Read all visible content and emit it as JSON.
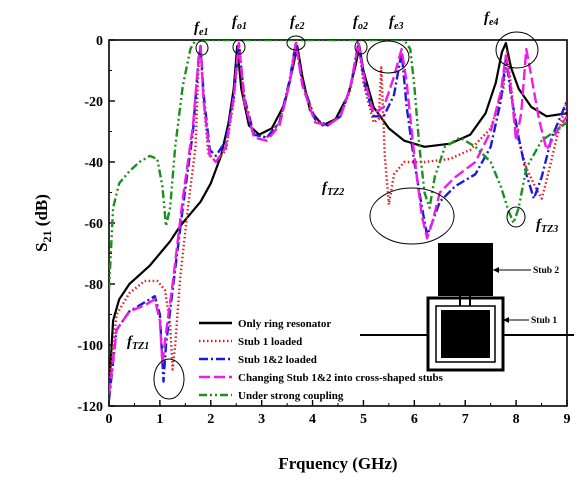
{
  "chart_data": {
    "type": "line",
    "xlabel": "Frquency (GHz)",
    "ylabel_main": "S",
    "ylabel_sub": "21",
    "ylabel_unit": " (dB)",
    "xlim": [
      0,
      9
    ],
    "ylim": [
      -120,
      0
    ],
    "x_ticks": [
      "0",
      "1",
      "2",
      "3",
      "4",
      "5",
      "6",
      "7",
      "8",
      "9"
    ],
    "y_ticks": [
      "0",
      "-20",
      "-40",
      "-60",
      "-80",
      "-100",
      "-120"
    ],
    "grid": false,
    "legend_position": "bottom-left",
    "series": [
      {
        "name": "Only ring resonator",
        "color": "#000000",
        "dash": "solid",
        "points": [
          [
            0,
            -115
          ],
          [
            0.08,
            -92
          ],
          [
            0.2,
            -85
          ],
          [
            0.4,
            -80
          ],
          [
            0.6,
            -77
          ],
          [
            0.8,
            -74
          ],
          [
            1.0,
            -70
          ],
          [
            1.2,
            -66
          ],
          [
            1.4,
            -61
          ],
          [
            1.6,
            -57
          ],
          [
            1.8,
            -53
          ],
          [
            2.0,
            -47
          ],
          [
            2.2,
            -38
          ],
          [
            2.35,
            -27
          ],
          [
            2.45,
            -16
          ],
          [
            2.52,
            -2
          ],
          [
            2.6,
            -16
          ],
          [
            2.75,
            -28
          ],
          [
            2.95,
            -31
          ],
          [
            3.2,
            -29
          ],
          [
            3.45,
            -21
          ],
          [
            3.6,
            -10
          ],
          [
            3.7,
            -2
          ],
          [
            3.8,
            -12
          ],
          [
            3.95,
            -23
          ],
          [
            4.2,
            -28
          ],
          [
            4.45,
            -26
          ],
          [
            4.7,
            -18
          ],
          [
            4.85,
            -8
          ],
          [
            4.92,
            -2
          ],
          [
            5.0,
            -10
          ],
          [
            5.2,
            -22
          ],
          [
            5.5,
            -29
          ],
          [
            5.8,
            -33
          ],
          [
            6.2,
            -35
          ],
          [
            6.7,
            -34
          ],
          [
            7.1,
            -31
          ],
          [
            7.4,
            -24
          ],
          [
            7.6,
            -14
          ],
          [
            7.72,
            -4
          ],
          [
            7.8,
            -1
          ],
          [
            7.9,
            -9
          ],
          [
            8.05,
            -16
          ],
          [
            8.3,
            -22
          ],
          [
            8.6,
            -25
          ],
          [
            9.0,
            -24
          ]
        ]
      },
      {
        "name": "Stub 1 loaded",
        "color": "#e8161f",
        "dash": "dotted",
        "points": [
          [
            0,
            -112
          ],
          [
            0.15,
            -90
          ],
          [
            0.4,
            -83
          ],
          [
            0.7,
            -79
          ],
          [
            0.95,
            -79
          ],
          [
            1.1,
            -82
          ],
          [
            1.2,
            -93
          ],
          [
            1.25,
            -108
          ],
          [
            1.3,
            -100
          ],
          [
            1.4,
            -78
          ],
          [
            1.55,
            -55
          ],
          [
            1.7,
            -35
          ],
          [
            1.76,
            -8
          ],
          [
            1.8,
            -2
          ],
          [
            1.85,
            -18
          ],
          [
            1.95,
            -37
          ],
          [
            2.1,
            -40
          ],
          [
            2.3,
            -36
          ],
          [
            2.45,
            -20
          ],
          [
            2.55,
            -2
          ],
          [
            2.65,
            -20
          ],
          [
            2.85,
            -31
          ],
          [
            3.1,
            -32
          ],
          [
            3.35,
            -27
          ],
          [
            3.55,
            -14
          ],
          [
            3.68,
            -1
          ],
          [
            3.8,
            -14
          ],
          [
            4.05,
            -26
          ],
          [
            4.3,
            -28
          ],
          [
            4.55,
            -25
          ],
          [
            4.75,
            -16
          ],
          [
            4.9,
            -1
          ],
          [
            5.0,
            -14
          ],
          [
            5.2,
            -27
          ],
          [
            5.3,
            -26
          ],
          [
            5.35,
            -9
          ],
          [
            5.42,
            -38
          ],
          [
            5.5,
            -54
          ],
          [
            5.6,
            -44
          ],
          [
            5.8,
            -40
          ],
          [
            6.2,
            -40
          ],
          [
            6.7,
            -39
          ],
          [
            7.1,
            -36
          ],
          [
            7.5,
            -29
          ],
          [
            7.75,
            -16
          ],
          [
            7.82,
            -4
          ],
          [
            7.9,
            -15
          ],
          [
            8.0,
            -30
          ],
          [
            8.2,
            -42
          ],
          [
            8.4,
            -49
          ],
          [
            8.5,
            -52
          ],
          [
            8.6,
            -46
          ],
          [
            8.8,
            -32
          ],
          [
            9.0,
            -20
          ]
        ]
      },
      {
        "name": "Stub 1&2 loaded",
        "color": "#1a1adf",
        "dash": "dashdot",
        "points": [
          [
            0,
            -118
          ],
          [
            0.15,
            -95
          ],
          [
            0.4,
            -89
          ],
          [
            0.7,
            -86
          ],
          [
            0.9,
            -84
          ],
          [
            1.0,
            -90
          ],
          [
            1.07,
            -112
          ],
          [
            1.12,
            -100
          ],
          [
            1.25,
            -82
          ],
          [
            1.45,
            -55
          ],
          [
            1.65,
            -30
          ],
          [
            1.76,
            -6
          ],
          [
            1.8,
            -2
          ],
          [
            1.86,
            -18
          ],
          [
            1.98,
            -36
          ],
          [
            2.1,
            -38
          ],
          [
            2.3,
            -33
          ],
          [
            2.45,
            -18
          ],
          [
            2.55,
            -1
          ],
          [
            2.66,
            -19
          ],
          [
            2.85,
            -31
          ],
          [
            3.1,
            -32
          ],
          [
            3.35,
            -27
          ],
          [
            3.55,
            -13
          ],
          [
            3.67,
            -1
          ],
          [
            3.8,
            -14
          ],
          [
            4.05,
            -26
          ],
          [
            4.3,
            -28
          ],
          [
            4.55,
            -25
          ],
          [
            4.75,
            -15
          ],
          [
            4.9,
            -1
          ],
          [
            5.02,
            -14
          ],
          [
            5.2,
            -25
          ],
          [
            5.4,
            -25
          ],
          [
            5.6,
            -18
          ],
          [
            5.75,
            -4
          ],
          [
            5.85,
            -22
          ],
          [
            6.0,
            -40
          ],
          [
            6.15,
            -55
          ],
          [
            6.25,
            -64
          ],
          [
            6.35,
            -60
          ],
          [
            6.5,
            -53
          ],
          [
            6.8,
            -48
          ],
          [
            7.2,
            -44
          ],
          [
            7.5,
            -35
          ],
          [
            7.7,
            -20
          ],
          [
            7.8,
            -6
          ],
          [
            7.9,
            -18
          ],
          [
            8.05,
            -32
          ],
          [
            8.2,
            -44
          ],
          [
            8.35,
            -52
          ],
          [
            8.5,
            -45
          ],
          [
            8.7,
            -32
          ],
          [
            9.0,
            -20
          ]
        ]
      },
      {
        "name": "Changing Stub 1&2 into cross-shaped stubs",
        "color": "#ee1ce8",
        "dash": "longdash",
        "points": [
          [
            0,
            -116
          ],
          [
            0.15,
            -95
          ],
          [
            0.4,
            -89
          ],
          [
            0.7,
            -87
          ],
          [
            0.9,
            -85
          ],
          [
            1.0,
            -92
          ],
          [
            1.05,
            -106
          ],
          [
            1.12,
            -96
          ],
          [
            1.25,
            -80
          ],
          [
            1.45,
            -52
          ],
          [
            1.65,
            -28
          ],
          [
            1.76,
            -6
          ],
          [
            1.8,
            -2
          ],
          [
            1.86,
            -20
          ],
          [
            1.98,
            -38
          ],
          [
            2.1,
            -40
          ],
          [
            2.3,
            -35
          ],
          [
            2.45,
            -19
          ],
          [
            2.55,
            -1
          ],
          [
            2.66,
            -20
          ],
          [
            2.85,
            -32
          ],
          [
            3.1,
            -33
          ],
          [
            3.35,
            -28
          ],
          [
            3.55,
            -14
          ],
          [
            3.67,
            -1
          ],
          [
            3.8,
            -15
          ],
          [
            4.05,
            -27
          ],
          [
            4.3,
            -28
          ],
          [
            4.55,
            -25
          ],
          [
            4.75,
            -15
          ],
          [
            4.9,
            -1
          ],
          [
            5.02,
            -13
          ],
          [
            5.2,
            -24
          ],
          [
            5.4,
            -22
          ],
          [
            5.6,
            -12
          ],
          [
            5.75,
            -3
          ],
          [
            5.85,
            -14
          ],
          [
            6.0,
            -38
          ],
          [
            6.15,
            -58
          ],
          [
            6.25,
            -65
          ],
          [
            6.35,
            -60
          ],
          [
            6.5,
            -50
          ],
          [
            6.8,
            -45
          ],
          [
            7.2,
            -40
          ],
          [
            7.5,
            -30
          ],
          [
            7.7,
            -17
          ],
          [
            7.8,
            -5
          ],
          [
            7.9,
            -16
          ],
          [
            8.0,
            -33
          ],
          [
            8.1,
            -24
          ],
          [
            8.2,
            -3
          ],
          [
            8.3,
            -12
          ],
          [
            8.45,
            -26
          ],
          [
            8.6,
            -36
          ],
          [
            8.8,
            -30
          ],
          [
            9.0,
            -25
          ]
        ]
      },
      {
        "name": "Under strong coupling",
        "color": "#1d8f1d",
        "dash": "dashdotdot",
        "points": [
          [
            0,
            -82
          ],
          [
            0.08,
            -55
          ],
          [
            0.2,
            -47
          ],
          [
            0.4,
            -43
          ],
          [
            0.6,
            -40
          ],
          [
            0.8,
            -38
          ],
          [
            0.95,
            -39
          ],
          [
            1.05,
            -48
          ],
          [
            1.12,
            -61
          ],
          [
            1.2,
            -55
          ],
          [
            1.3,
            -35
          ],
          [
            1.45,
            -15
          ],
          [
            1.6,
            -3
          ],
          [
            1.7,
            0
          ],
          [
            5.8,
            0
          ],
          [
            5.92,
            -3
          ],
          [
            6.0,
            -15
          ],
          [
            6.1,
            -35
          ],
          [
            6.2,
            -50
          ],
          [
            6.3,
            -55
          ],
          [
            6.4,
            -45
          ],
          [
            6.6,
            -35
          ],
          [
            6.9,
            -32
          ],
          [
            7.2,
            -35
          ],
          [
            7.5,
            -40
          ],
          [
            7.7,
            -48
          ],
          [
            7.85,
            -56
          ],
          [
            7.95,
            -60
          ],
          [
            8.05,
            -55
          ],
          [
            8.2,
            -42
          ],
          [
            8.5,
            -33
          ],
          [
            9.0,
            -27
          ]
        ]
      }
    ],
    "annotations": [
      {
        "main": "f",
        "sub": "e1"
      },
      {
        "main": "f",
        "sub": "o1"
      },
      {
        "main": "f",
        "sub": "e2"
      },
      {
        "main": "f",
        "sub": "o2"
      },
      {
        "main": "f",
        "sub": "e3"
      },
      {
        "main": "f",
        "sub": "e4"
      },
      {
        "main": "f",
        "sub": "TZ2"
      },
      {
        "main": "f",
        "sub": "TZ3"
      },
      {
        "main": "f",
        "sub": "TZ1"
      }
    ],
    "inset_labels": [
      "Stub 2",
      "Stub 1"
    ]
  }
}
